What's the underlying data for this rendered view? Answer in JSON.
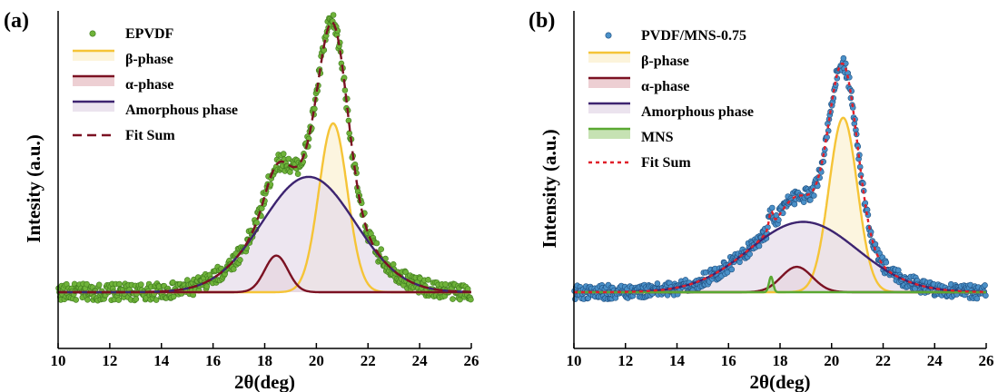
{
  "chart_data": [
    {
      "type": "scatter",
      "panel_label": "(a)",
      "xlabel": "2θ(deg)",
      "ylabel": "Intesity (a.u.)",
      "xlim": [
        10,
        26
      ],
      "xticks": [
        "10",
        "12",
        "14",
        "16",
        "18",
        "20",
        "22",
        "24",
        "26"
      ],
      "ylim": [
        0,
        1.2
      ],
      "y_ticks_shown": false,
      "legend": {
        "placement": "top-left",
        "entries": [
          "EPVDF",
          "β-phase",
          "α-phase",
          "Amorphous phase",
          "Fit Sum"
        ]
      },
      "baseline": 0.2,
      "series": [
        {
          "name": "EPVDF",
          "kind": "scatter",
          "color": "#6fb33a",
          "noise": 0.03
        },
        {
          "name": "β-phase",
          "kind": "peak",
          "center": 20.65,
          "height": 0.6,
          "width": 0.55,
          "color": "#f5c437",
          "fill": "#fbf1d2"
        },
        {
          "name": "α-phase",
          "kind": "peak",
          "center": 18.45,
          "height": 0.13,
          "width": 0.45,
          "color": "#7b1122",
          "fill": "#e8c3c8"
        },
        {
          "name": "Amorphous phase",
          "kind": "peak",
          "center": 19.7,
          "height": 0.41,
          "width": 1.8,
          "color": "#3d2470",
          "fill": "#e6dcea"
        },
        {
          "name": "Fit Sum",
          "kind": "sum",
          "color": "#7b1122",
          "dash": "10,6"
        }
      ]
    },
    {
      "type": "scatter",
      "panel_label": "(b)",
      "xlabel": "2θ(deg)",
      "ylabel": "Intensity (a.u.)",
      "xlim": [
        10,
        26
      ],
      "xticks": [
        "10",
        "12",
        "14",
        "16",
        "18",
        "20",
        "22",
        "24",
        "26"
      ],
      "ylim": [
        0,
        1.2
      ],
      "y_ticks_shown": false,
      "legend": {
        "placement": "top-left",
        "entries": [
          "PVDF/MNS-0.75",
          "β-phase",
          "α-phase",
          "Amorphous phase",
          "MNS",
          "Fit Sum"
        ]
      },
      "baseline": 0.2,
      "series": [
        {
          "name": "PVDF/MNS-0.75",
          "kind": "scatter",
          "color": "#4a90c8",
          "noise": 0.025
        },
        {
          "name": "β-phase",
          "kind": "peak",
          "center": 20.45,
          "height": 0.62,
          "width": 0.55,
          "color": "#f5c437",
          "fill": "#fbf1d2"
        },
        {
          "name": "α-phase",
          "kind": "peak",
          "center": 18.65,
          "height": 0.09,
          "width": 0.6,
          "color": "#7b1122",
          "fill": "#e8c3c8"
        },
        {
          "name": "Amorphous phase",
          "kind": "peak",
          "center": 18.9,
          "height": 0.25,
          "width": 2.1,
          "color": "#3d2470",
          "fill": "#e6dcea"
        },
        {
          "name": "MNS",
          "kind": "peak",
          "center": 17.65,
          "height": 0.055,
          "width": 0.08,
          "color": "#5aa832",
          "fill": "#b8dba0"
        },
        {
          "name": "Fit Sum",
          "kind": "sum",
          "color": "#e0202a",
          "dash": "4,4"
        }
      ]
    }
  ]
}
